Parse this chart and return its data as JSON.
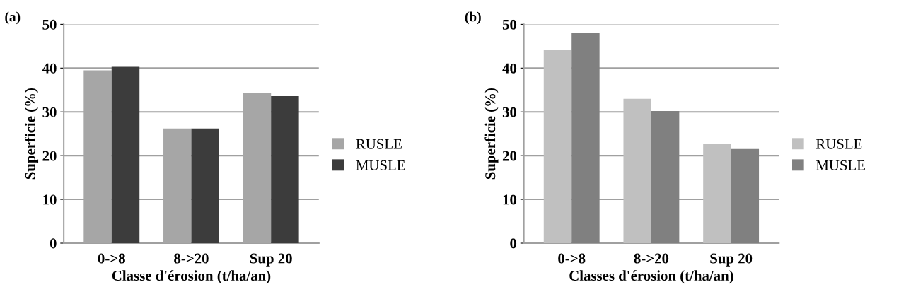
{
  "chart_data": [
    {
      "type": "bar",
      "title": "(a)",
      "xlabel": "Classe d'érosion (t/ha/an)",
      "ylabel": "Superficie (%)",
      "categories": [
        "0->8",
        "8->20",
        "Sup 20"
      ],
      "series": [
        {
          "name": "RUSLE",
          "color": "#a6a6a6",
          "values": [
            39.5,
            26.2,
            34.3
          ]
        },
        {
          "name": "MUSLE",
          "color": "#3c3c3c",
          "values": [
            40.3,
            26.2,
            33.6
          ]
        }
      ],
      "ylim": [
        0,
        50
      ],
      "yticks": [
        0,
        10,
        20,
        30,
        40,
        50
      ],
      "grid": "y",
      "legend": "right"
    },
    {
      "type": "bar",
      "title": "(b)",
      "xlabel": "Classes d'érosion (t/ha/an)",
      "ylabel": "Superficie (%)",
      "categories": [
        "0->8",
        "8->20",
        "Sup 20"
      ],
      "series": [
        {
          "name": "RUSLE",
          "color": "#c0c0c0",
          "values": [
            44.1,
            33.0,
            22.7
          ]
        },
        {
          "name": "MUSLE",
          "color": "#808080",
          "values": [
            48.1,
            30.2,
            21.5
          ]
        }
      ],
      "ylim": [
        0,
        50
      ],
      "yticks": [
        0,
        10,
        20,
        30,
        40,
        50
      ],
      "grid": "y",
      "legend": "right"
    }
  ]
}
